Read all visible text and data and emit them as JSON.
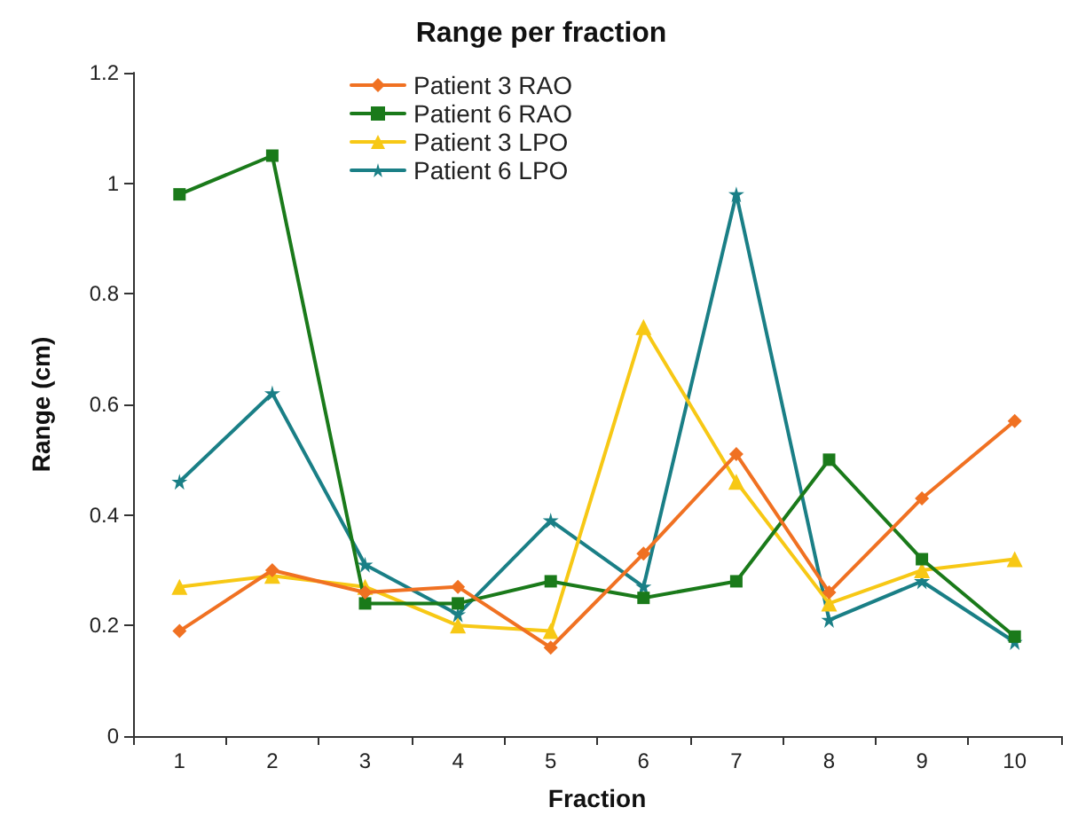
{
  "chart_data": {
    "type": "line",
    "title": "Range per fraction",
    "xlabel": "Fraction",
    "ylabel": "Range (cm)",
    "categories": [
      "1",
      "2",
      "3",
      "4",
      "5",
      "6",
      "7",
      "8",
      "9",
      "10"
    ],
    "series": [
      {
        "name": "Patient 3 RAO",
        "color": "#f07122",
        "marker": "diamond",
        "values": [
          0.19,
          0.3,
          0.26,
          0.27,
          0.16,
          0.33,
          0.51,
          0.26,
          0.43,
          0.57
        ]
      },
      {
        "name": "Patient 6 RAO",
        "color": "#1a7a1a",
        "marker": "square",
        "values": [
          0.98,
          1.05,
          0.24,
          0.24,
          0.28,
          0.25,
          0.28,
          0.5,
          0.32,
          0.18
        ]
      },
      {
        "name": "Patient 3 LPO",
        "color": "#f7c815",
        "marker": "triangle",
        "values": [
          0.27,
          0.29,
          0.27,
          0.2,
          0.19,
          0.74,
          0.46,
          0.24,
          0.3,
          0.32
        ]
      },
      {
        "name": "Patient 6 LPO",
        "color": "#1a7f86",
        "marker": "star",
        "values": [
          0.46,
          0.62,
          0.31,
          0.22,
          0.39,
          0.27,
          0.98,
          0.21,
          0.28,
          0.17
        ]
      }
    ],
    "ylim": [
      0,
      1.2
    ],
    "yticks": [
      0,
      0.2,
      0.4,
      0.6,
      0.8,
      1,
      1.2
    ],
    "grid": false,
    "legend": "top",
    "line_style": "solid"
  }
}
